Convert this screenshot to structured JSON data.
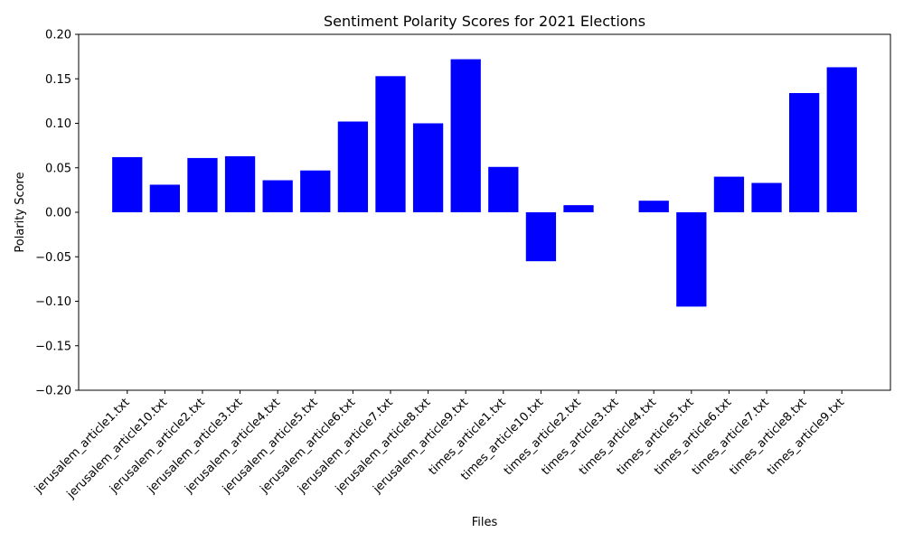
{
  "chart_data": {
    "type": "bar",
    "title": "Sentiment Polarity Scores for 2021 Elections",
    "xlabel": "Files",
    "ylabel": "Polarity Score",
    "ylim": [
      -0.2,
      0.2
    ],
    "yticks": [
      -0.2,
      -0.15,
      -0.1,
      -0.05,
      0.0,
      0.05,
      0.1,
      0.15,
      0.2
    ],
    "ytick_labels": [
      "−0.20",
      "−0.15",
      "−0.10",
      "−0.05",
      "0.00",
      "0.05",
      "0.10",
      "0.15",
      "0.20"
    ],
    "grid": false,
    "bar_color": "#0000ff",
    "categories": [
      "jerusalem_article1.txt",
      "jerusalem_article10.txt",
      "jerusalem_article2.txt",
      "jerusalem_article3.txt",
      "jerusalem_article4.txt",
      "jerusalem_article5.txt",
      "jerusalem_article6.txt",
      "jerusalem_article7.txt",
      "jerusalem_article8.txt",
      "jerusalem_article9.txt",
      "times_article1.txt",
      "times_article10.txt",
      "times_article2.txt",
      "times_article3.txt",
      "times_article4.txt",
      "times_article5.txt",
      "times_article6.txt",
      "times_article7.txt",
      "times_article8.txt",
      "times_article9.txt"
    ],
    "values": [
      0.062,
      0.031,
      0.061,
      0.063,
      0.036,
      0.047,
      0.102,
      0.153,
      0.1,
      0.172,
      0.051,
      -0.055,
      0.008,
      0.0,
      0.013,
      -0.106,
      0.04,
      0.033,
      0.134,
      0.163
    ]
  }
}
